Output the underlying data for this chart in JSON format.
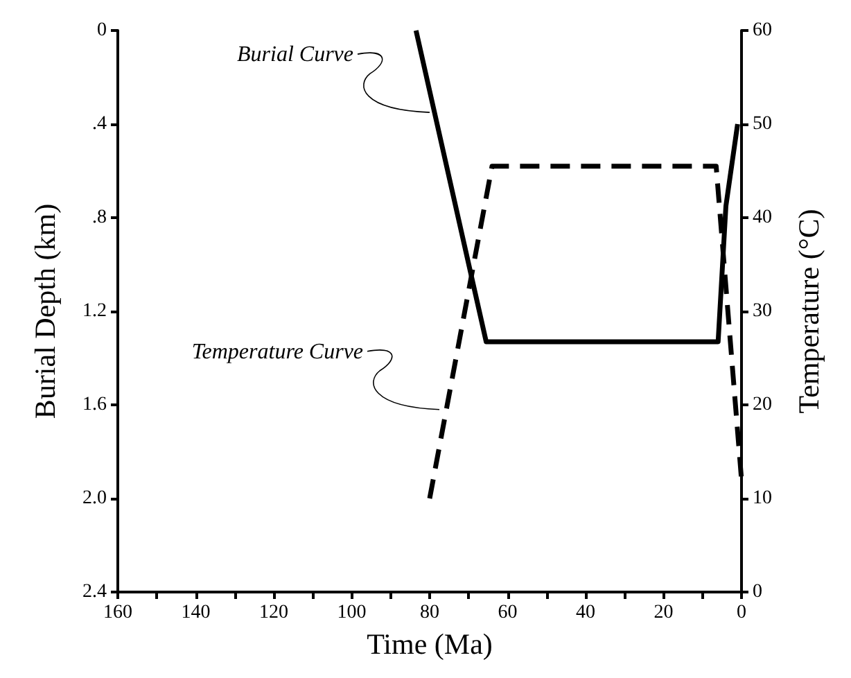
{
  "chart_data": {
    "type": "line",
    "xlabel": "Time (Ma)",
    "ylabel": "Burial Depth (km)",
    "y2label": "Temperature (°C)",
    "xlim": [
      160,
      0
    ],
    "xticks": [
      160,
      {
        "value": 150,
        "label": null
      },
      140,
      {
        "value": 130,
        "label": null
      },
      120,
      {
        "value": 110,
        "label": null
      },
      100,
      {
        "value": 90,
        "label": null
      },
      80,
      {
        "value": 70,
        "label": null
      },
      60,
      {
        "value": 50,
        "label": null
      },
      40,
      {
        "value": 30,
        "label": null
      },
      20,
      {
        "value": 10,
        "label": null
      },
      0
    ],
    "ylim": [
      2.4,
      0
    ],
    "yticks": [
      0,
      {
        "value": 0.4,
        "label": ".4"
      },
      {
        "value": 0.8,
        "label": ".8"
      },
      1.2,
      1.6,
      {
        "value": 2,
        "label": "2.0"
      },
      2.4
    ],
    "y2lim": [
      0,
      60
    ],
    "y2ticks": [
      0,
      10,
      20,
      30,
      40,
      50,
      60
    ],
    "grid": false,
    "marker": "none",
    "series": [
      {
        "color": "#000000",
        "line_style": "solid",
        "x": [
          83.5,
          65.5,
          6,
          4,
          1
        ],
        "values": [
          0,
          1.33,
          1.33,
          0.75,
          0.4
        ]
      },
      {
        "color": "#000000",
        "line_style": "dashed",
        "axis": "y2",
        "x": [
          80,
          64,
          6.5,
          0
        ],
        "values": [
          10,
          45.5,
          45.5,
          12
        ]
      }
    ],
    "annotations": [
      {
        "text": "Burial Curve",
        "x": 80,
        "y": 0.35
      },
      {
        "text": "Temperature Curve",
        "x": 77.5,
        "y": 1.62
      }
    ]
  }
}
